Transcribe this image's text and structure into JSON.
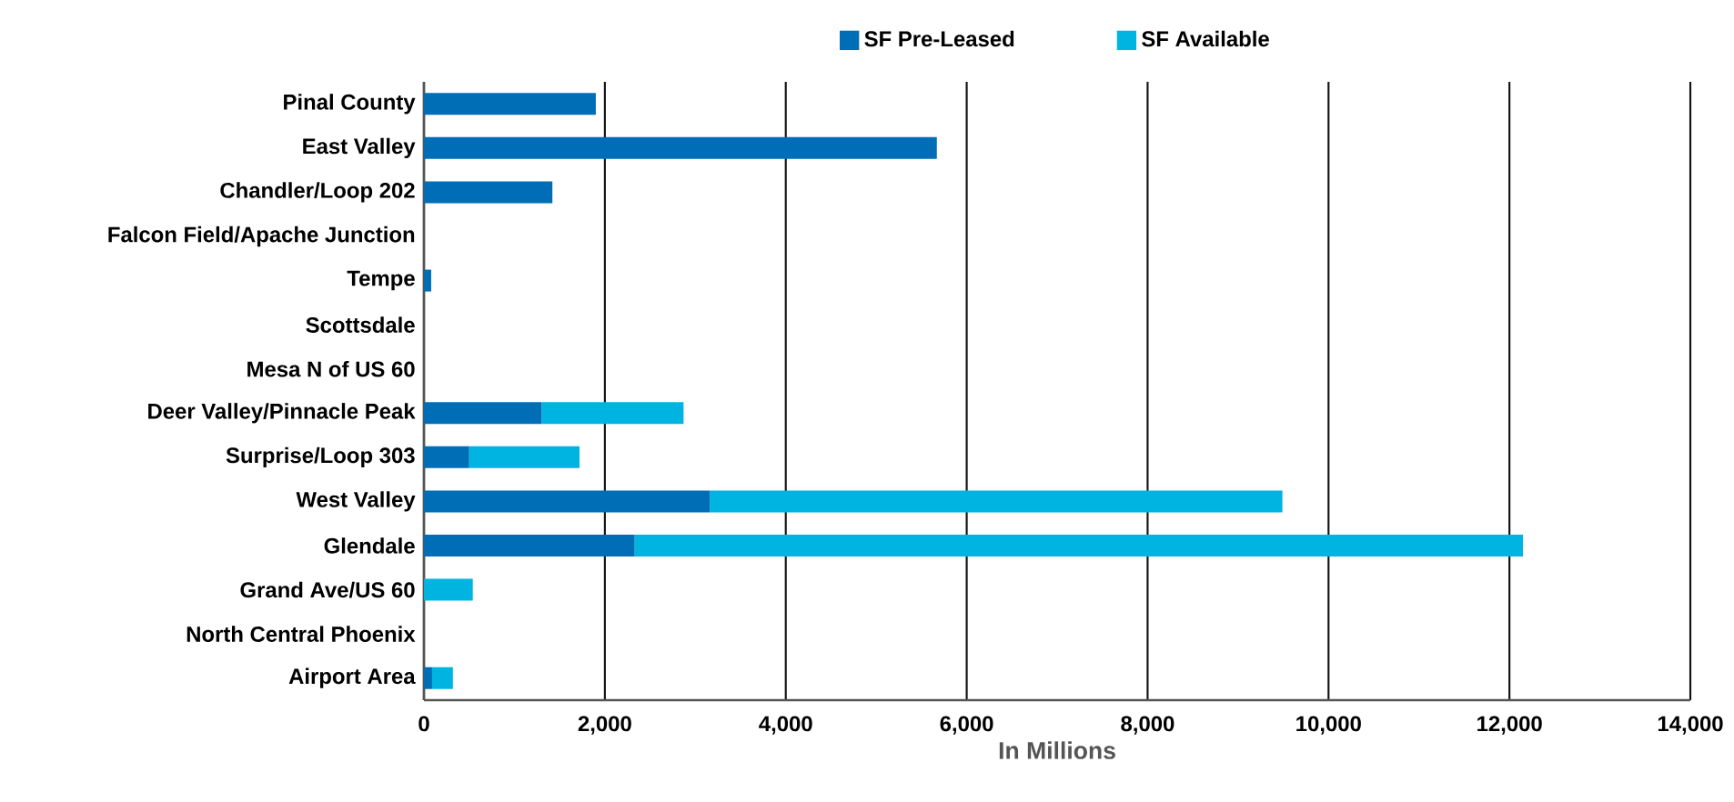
{
  "chart_data": {
    "type": "bar",
    "orientation": "horizontal",
    "stacked": true,
    "categories": [
      "Pinal County",
      "East Valley",
      "Chandler/Loop 202",
      "Falcon Field/Apache Junction",
      "Tempe",
      "Scottsdale",
      "Mesa N of US 60",
      "Deer Valley/Pinnacle Peak",
      "Surprise/Loop 303",
      "West Valley",
      "Glendale",
      "Grand Ave/US 60",
      "North Central Phoenix",
      "Airport Area"
    ],
    "series": [
      {
        "name": "SF Pre-Leased",
        "color": "#006eb6",
        "values": [
          1900,
          5670,
          1420,
          null,
          80,
          null,
          null,
          1300,
          500,
          3160,
          2330,
          null,
          null,
          90
        ]
      },
      {
        "name": "SF Available",
        "color": "#00b4e2",
        "values": [
          null,
          null,
          null,
          null,
          null,
          null,
          null,
          1570,
          1220,
          6330,
          9820,
          540,
          null,
          230
        ]
      }
    ],
    "xlabel": "In Millions",
    "xlim": [
      0,
      14000
    ],
    "xticks": [
      0,
      {
        "value": 2000,
        "label": "2,000"
      },
      {
        "value": 4000,
        "label": "4,000"
      },
      {
        "value": 6000,
        "label": "6,000"
      },
      {
        "value": 8000,
        "label": "8,000"
      },
      {
        "value": 10000,
        "label": "10,000"
      },
      {
        "value": 12000,
        "label": "12,000"
      },
      {
        "value": 14000,
        "label": "14,000"
      }
    ],
    "grid": "x",
    "legend": "top"
  }
}
